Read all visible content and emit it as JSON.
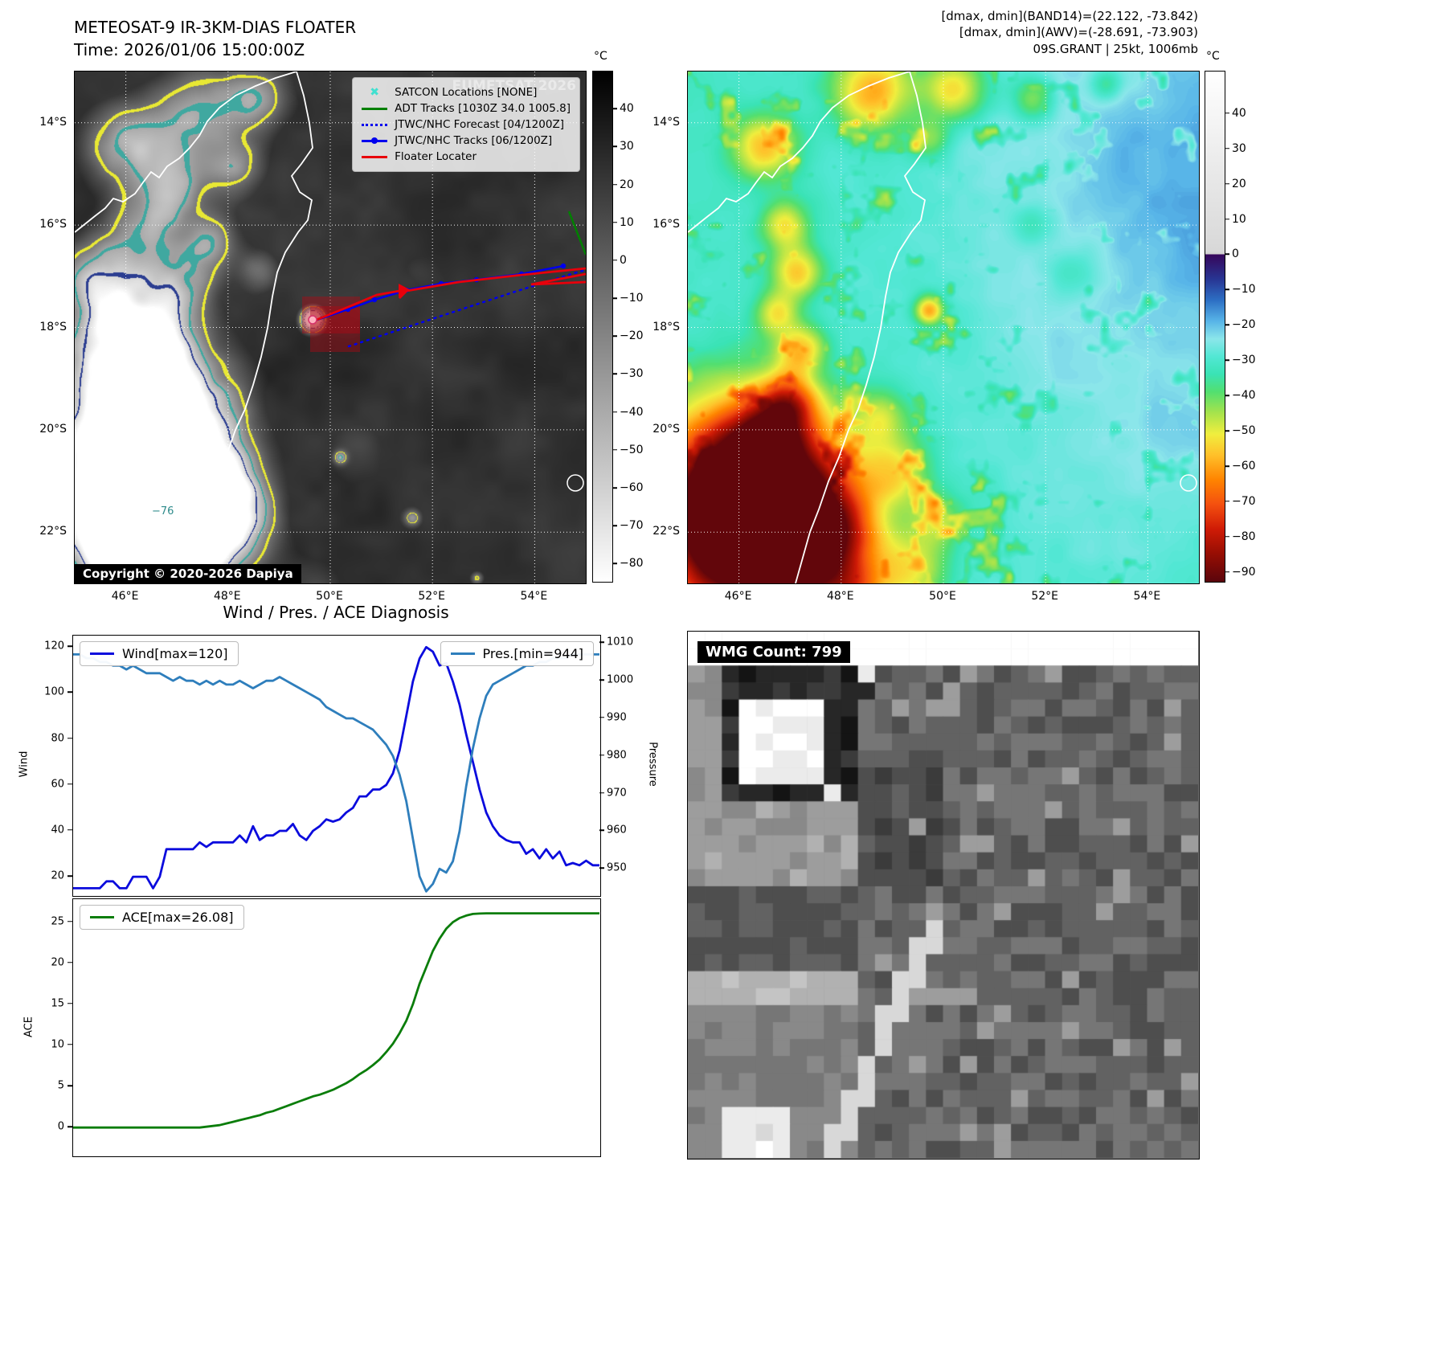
{
  "colors": {
    "wind": "#0b0bdd",
    "pres": "#2e7ebc",
    "ace": "#0a7d0a",
    "track_red": "#e8000b",
    "track_blue": "#0000ee",
    "adt_green": "#008000",
    "satcon_cyan": "#40e0d0",
    "floater_box": "rgba(178,8,18,0.42)"
  },
  "ir_panel": {
    "title": "METEOSAT-9 IR-3KM-DIAS FLOATER",
    "subtitle": "Time: 2026/01/06 15:00:00Z",
    "watermark": "EUMETSAT 2026",
    "copyright": "Copyright © 2020-2026 Dapiya",
    "contour_label": "−76",
    "legend": [
      {
        "label": "SATCON Locations [NONE]"
      },
      {
        "label": "ADT Tracks [1030Z 34.0 1005.8]"
      },
      {
        "label": "JTWC/NHC Forecast [04/1200Z]"
      },
      {
        "label": "JTWC/NHC Tracks [06/1200Z]"
      },
      {
        "label": "Floater Locater"
      }
    ],
    "lat_ticks": [
      "14°S",
      "16°S",
      "18°S",
      "20°S",
      "22°S"
    ],
    "lon_ticks": [
      "46°E",
      "48°E",
      "50°E",
      "52°E",
      "54°E"
    ],
    "colorbar": {
      "unit": "°C",
      "ticks": [
        "40",
        "30",
        "20",
        "10",
        "0",
        "−10",
        "−20",
        "−30",
        "−40",
        "−50",
        "−60",
        "−70",
        "−80"
      ],
      "vtop": 50,
      "vbot": -85,
      "stops": [
        {
          "v": 50,
          "c": "#000000"
        },
        {
          "v": -85,
          "c": "#ffffff"
        }
      ]
    }
  },
  "awv_panel": {
    "header_lines": [
      "[dmax, dmin](BAND14)=(22.122, -73.842)",
      "[dmax, dmin](AWV)=(-28.691, -73.903)",
      "09S.GRANT | 25kt, 1006mb"
    ],
    "lat_ticks": [
      "14°S",
      "16°S",
      "18°S",
      "20°S",
      "22°S"
    ],
    "lon_ticks": [
      "46°E",
      "48°E",
      "50°E",
      "52°E",
      "54°E"
    ],
    "colorbar": {
      "unit": "°C",
      "ticks": [
        "40",
        "30",
        "20",
        "10",
        "0",
        "−10",
        "−20",
        "−30",
        "−40",
        "−50",
        "−60",
        "−70",
        "−80",
        "−90"
      ],
      "vtop": 52,
      "vbot": -93,
      "stops": [
        {
          "v": 52,
          "c": "#ffffff"
        },
        {
          "v": 1,
          "c": "#d8d8d8"
        },
        {
          "v": 0,
          "c": "#d0d0d0"
        },
        {
          "v": 0,
          "c": "#36065a"
        },
        {
          "v": -7,
          "c": "#283593"
        },
        {
          "v": -13,
          "c": "#2d6fc4"
        },
        {
          "v": -19,
          "c": "#58b5e8"
        },
        {
          "v": -24,
          "c": "#8be6ea"
        },
        {
          "v": -29,
          "c": "#52e7d4"
        },
        {
          "v": -34,
          "c": "#3ae3b5"
        },
        {
          "v": -39,
          "c": "#52df70"
        },
        {
          "v": -45,
          "c": "#a6e34c"
        },
        {
          "v": -51,
          "c": "#f0ee3e"
        },
        {
          "v": -57,
          "c": "#ffc02a"
        },
        {
          "v": -64,
          "c": "#ff8400"
        },
        {
          "v": -71,
          "c": "#f4500f"
        },
        {
          "v": -78,
          "c": "#cf1b06"
        },
        {
          "v": -85,
          "c": "#970e03"
        },
        {
          "v": -93,
          "c": "#5a050c"
        }
      ]
    }
  },
  "diagnosis": {
    "title": "Wind / Pres. / ACE Diagnosis",
    "wind_legend": "Wind[max=120]",
    "pres_legend": "Pres.[min=944]",
    "ace_legend": "ACE[max=26.08]",
    "ylabel_wind": "Wind",
    "ylabel_pressure": "Pressure",
    "ylabel_ace": "ACE",
    "wind_ticks": [
      20,
      40,
      60,
      80,
      100,
      120
    ],
    "pres_ticks": [
      950,
      960,
      970,
      980,
      990,
      1000,
      1010
    ],
    "ace_ticks": [
      0,
      5,
      10,
      15,
      20,
      25
    ]
  },
  "wmg_panel": {
    "label": "WMG Count: 799"
  },
  "chart_data": [
    {
      "type": "line",
      "title": "Wind / Pres. / ACE Diagnosis",
      "x_note": "time steps, 80 samples",
      "left_ylabel": "Wind",
      "right_ylabel": "Pressure",
      "series": [
        {
          "name": "Wind[max=120]",
          "axis": "left",
          "color": "#0b0bdd",
          "ylim": [
            12,
            125
          ],
          "values": [
            15,
            15,
            15,
            15,
            15,
            18,
            18,
            15,
            15,
            20,
            20,
            20,
            15,
            20,
            32,
            32,
            32,
            32,
            32,
            35,
            33,
            35,
            35,
            35,
            35,
            38,
            35,
            42,
            36,
            38,
            38,
            40,
            40,
            43,
            38,
            36,
            40,
            42,
            45,
            44,
            45,
            48,
            50,
            55,
            55,
            58,
            58,
            60,
            65,
            75,
            90,
            105,
            115,
            120,
            118,
            112,
            113,
            105,
            95,
            82,
            70,
            58,
            48,
            42,
            38,
            36,
            35,
            35,
            30,
            32,
            28,
            32,
            28,
            31,
            25,
            26,
            25,
            27,
            25,
            25
          ]
        },
        {
          "name": "Pres.[min=944]",
          "axis": "right",
          "color": "#2e7ebc",
          "ylim": [
            943,
            1012
          ],
          "values": [
            1007,
            1007,
            1006,
            1006,
            1005,
            1005,
            1004,
            1004,
            1003,
            1004,
            1003,
            1002,
            1002,
            1002,
            1001,
            1000,
            1001,
            1000,
            1000,
            999,
            1000,
            999,
            1000,
            999,
            999,
            1000,
            999,
            998,
            999,
            1000,
            1000,
            1001,
            1000,
            999,
            998,
            997,
            996,
            995,
            993,
            992,
            991,
            990,
            990,
            989,
            988,
            987,
            985,
            983,
            980,
            975,
            968,
            958,
            948,
            944,
            946,
            950,
            949,
            952,
            960,
            972,
            982,
            990,
            996,
            999,
            1000,
            1001,
            1002,
            1003,
            1004,
            1004,
            1005,
            1005,
            1006,
            1006,
            1006,
            1007,
            1007,
            1007,
            1007,
            1007
          ]
        }
      ]
    },
    {
      "type": "line",
      "ylabel": "ACE",
      "ylim": [
        -3.4,
        27.8
      ],
      "series": [
        {
          "name": "ACE[max=26.08]",
          "color": "#0a7d0a",
          "ylim": [
            -3.4,
            27.8
          ],
          "values": [
            0,
            0,
            0,
            0,
            0,
            0,
            0,
            0,
            0,
            0,
            0,
            0,
            0,
            0,
            0,
            0,
            0,
            0,
            0,
            0,
            0.1,
            0.2,
            0.3,
            0.5,
            0.7,
            0.9,
            1.1,
            1.3,
            1.5,
            1.8,
            2,
            2.3,
            2.6,
            2.9,
            3.2,
            3.5,
            3.8,
            4,
            4.3,
            4.6,
            5,
            5.4,
            5.9,
            6.5,
            7,
            7.6,
            8.3,
            9.2,
            10.2,
            11.5,
            13,
            15,
            17.5,
            19.5,
            21.5,
            23,
            24.2,
            25,
            25.5,
            25.8,
            26,
            26.05,
            26.08,
            26.08,
            26.08,
            26.08,
            26.08,
            26.08,
            26.08,
            26.08,
            26.08,
            26.08,
            26.08,
            26.08,
            26.08,
            26.08,
            26.08,
            26.08,
            26.08,
            26.08
          ]
        }
      ]
    }
  ]
}
